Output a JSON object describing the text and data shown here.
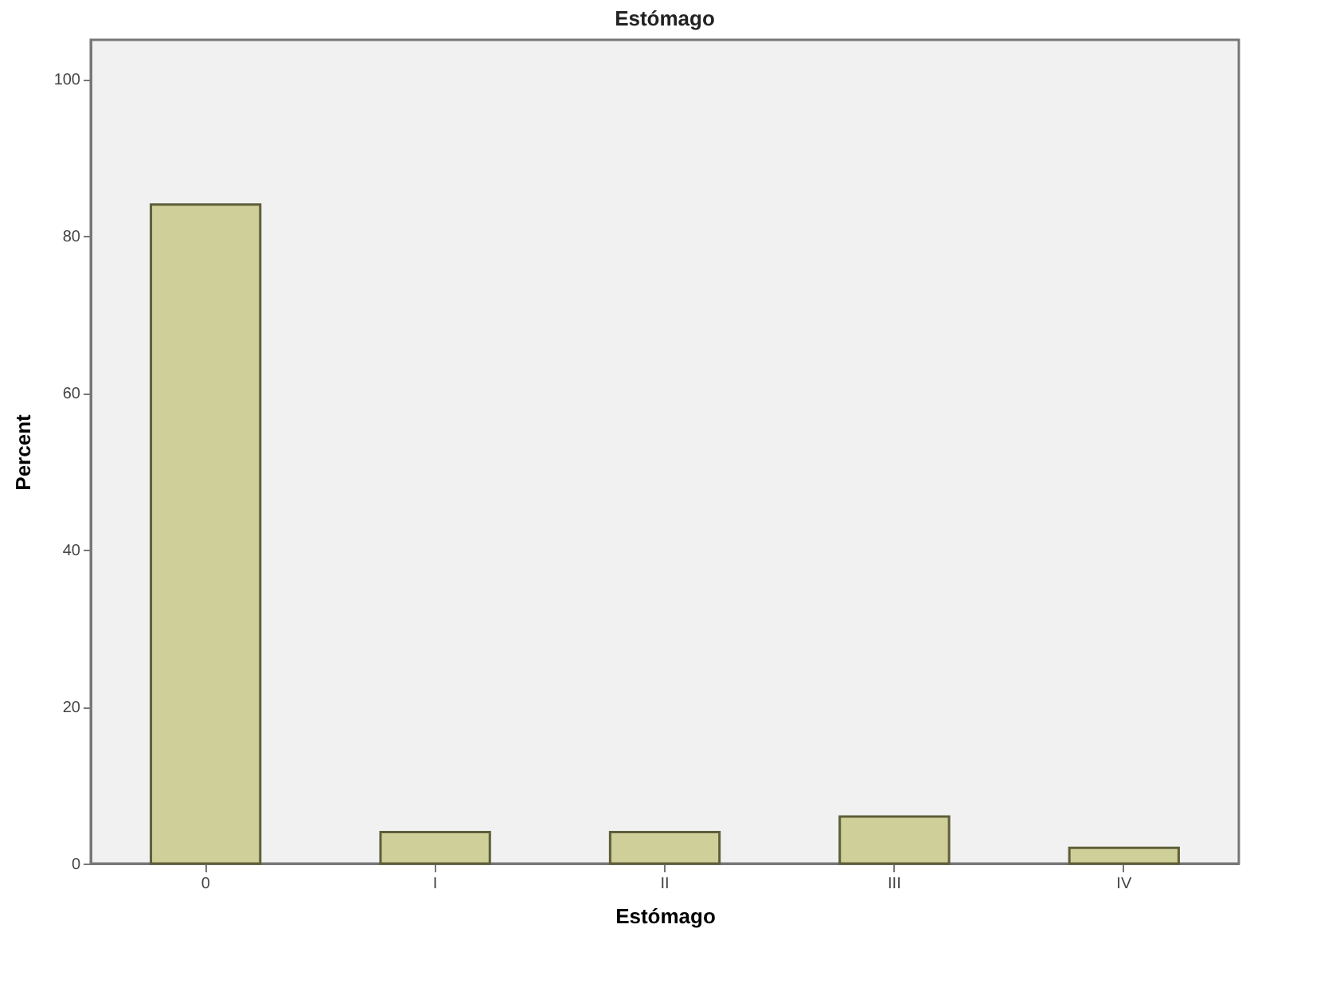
{
  "chart_data": {
    "type": "bar",
    "title": "Estómago",
    "xlabel": "Estómago",
    "ylabel": "Percent",
    "categories": [
      "0",
      "I",
      "II",
      "III",
      "IV"
    ],
    "values": [
      84,
      4,
      4,
      6,
      2
    ],
    "color": "#cfcf99",
    "ylim": [
      0,
      105
    ],
    "yticks": [
      0,
      20,
      40,
      60,
      80,
      100
    ],
    "grid": false
  }
}
